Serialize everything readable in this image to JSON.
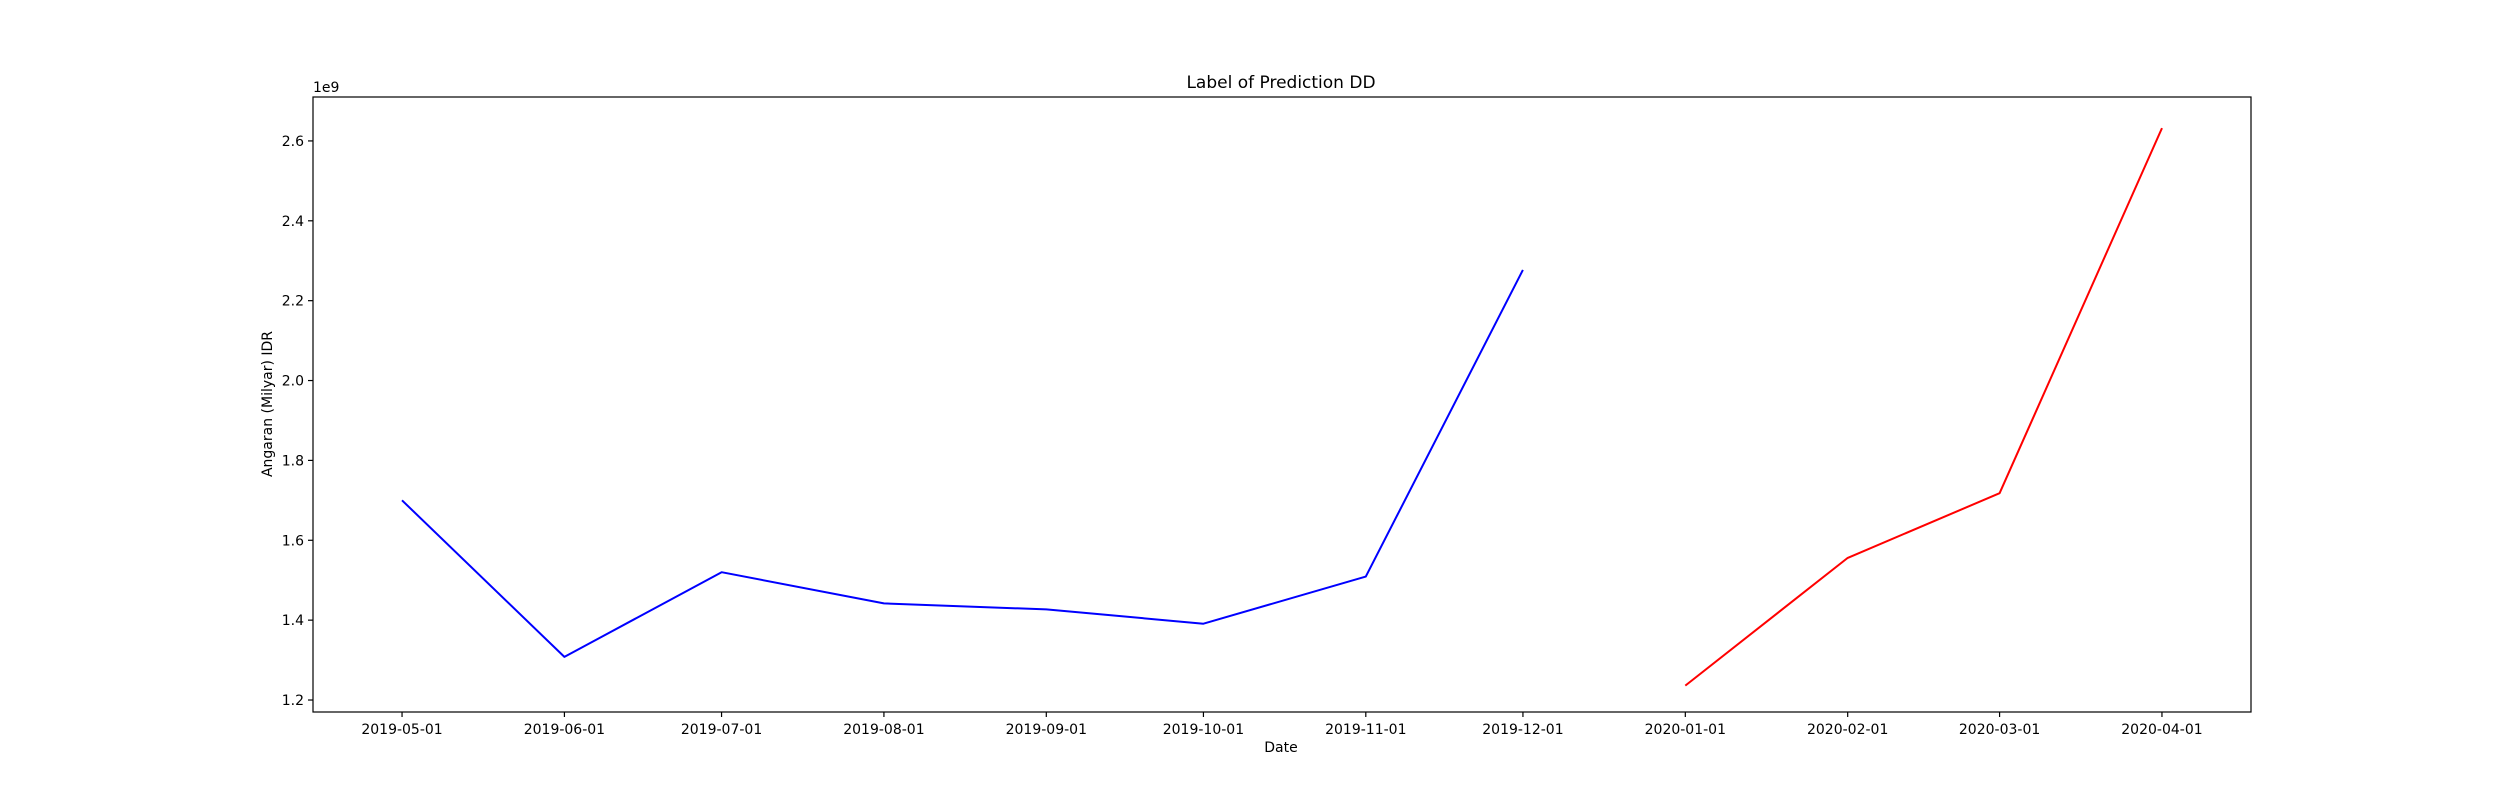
{
  "chart_data": {
    "type": "line",
    "title": "Label of Prediction DD",
    "xlabel": "Date",
    "ylabel": "Angaran (Milyar) IDR",
    "y_offset_label": "1e9",
    "y_scale_factor": 1000000000,
    "x_ticks": [
      "2019-05-01",
      "2019-06-01",
      "2019-07-01",
      "2019-08-01",
      "2019-09-01",
      "2019-10-01",
      "2019-11-01",
      "2019-12-01",
      "2020-01-01",
      "2020-02-01",
      "2020-03-01",
      "2020-04-01"
    ],
    "y_ticks": [
      1.2,
      1.4,
      1.6,
      1.8,
      2.0,
      2.2,
      2.4,
      2.6
    ],
    "ylim": [
      1170000000,
      2710000000
    ],
    "xlim": [
      "2019-04-14",
      "2020-04-18"
    ],
    "grid": false,
    "series": [
      {
        "color": "#0000ff",
        "x": [
          "2019-05-01",
          "2019-06-01",
          "2019-07-01",
          "2019-08-01",
          "2019-09-01",
          "2019-10-01",
          "2019-11-01",
          "2019-12-01"
        ],
        "y": [
          1700000000,
          1308000000,
          1520000000,
          1442000000,
          1427000000,
          1391000000,
          1509000000,
          2277000000
        ]
      },
      {
        "color": "#ff0000",
        "x": [
          "2020-01-01",
          "2020-02-01",
          "2020-03-01",
          "2020-04-01"
        ],
        "y": [
          1236000000,
          1556000000,
          1718000000,
          2632000000
        ]
      }
    ]
  }
}
